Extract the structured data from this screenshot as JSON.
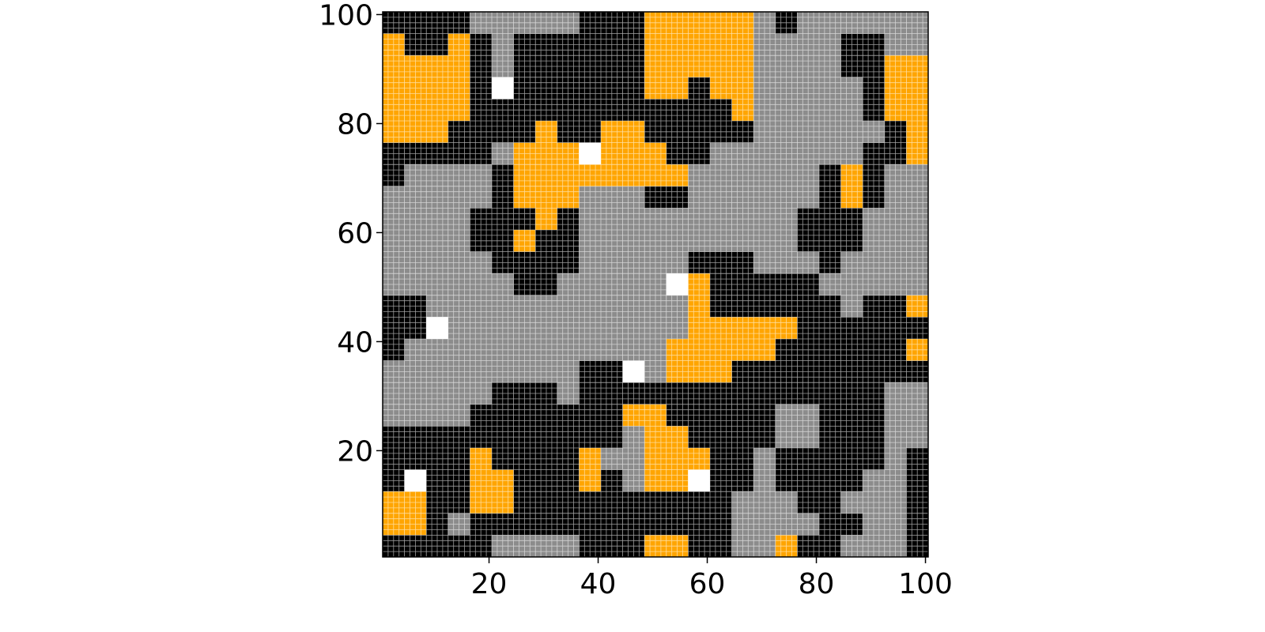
{
  "chart_data": {
    "type": "heatmap",
    "x": [
      2.5,
      6.5,
      10.5,
      14.5,
      18.5,
      22.5,
      26.5,
      30.5,
      34.5,
      38.5,
      42.5,
      46.5,
      50.5,
      54.5,
      58.5,
      62.5,
      66.5,
      70.5,
      74.5,
      78.5,
      82.5,
      86.5,
      90.5,
      94.5,
      98.5
    ],
    "y": [
      98.5,
      94.5,
      90.5,
      86.5,
      82.5,
      78.5,
      74.5,
      70.5,
      66.5,
      62.5,
      58.5,
      54.5,
      50.5,
      46.5,
      42.5,
      38.5,
      34.5,
      30.5,
      26.5,
      22.5,
      18.5,
      14.5,
      10.5,
      6.5,
      2.5
    ],
    "colors": [
      "#000000",
      "#8c8c8c",
      "#ffa500",
      "#ffffff"
    ],
    "values": [
      [
        0,
        0,
        0,
        0,
        1,
        1,
        1,
        1,
        1,
        0,
        0,
        0,
        2,
        2,
        2,
        2,
        2,
        1,
        0,
        1,
        1,
        1,
        1,
        1,
        1
      ],
      [
        2,
        0,
        0,
        2,
        0,
        1,
        0,
        0,
        0,
        0,
        0,
        0,
        2,
        2,
        2,
        2,
        2,
        1,
        1,
        1,
        1,
        0,
        0,
        1,
        1
      ],
      [
        2,
        2,
        2,
        2,
        0,
        1,
        0,
        0,
        0,
        0,
        0,
        0,
        2,
        2,
        2,
        2,
        2,
        1,
        1,
        1,
        1,
        0,
        0,
        2,
        2
      ],
      [
        2,
        2,
        2,
        2,
        0,
        3,
        0,
        0,
        0,
        0,
        0,
        0,
        2,
        2,
        0,
        2,
        2,
        1,
        1,
        1,
        1,
        1,
        0,
        2,
        2
      ],
      [
        2,
        2,
        2,
        2,
        0,
        0,
        0,
        0,
        0,
        0,
        0,
        0,
        0,
        0,
        0,
        0,
        2,
        1,
        1,
        1,
        1,
        1,
        0,
        2,
        2
      ],
      [
        2,
        2,
        2,
        0,
        0,
        0,
        0,
        2,
        0,
        0,
        2,
        2,
        0,
        0,
        0,
        0,
        0,
        1,
        1,
        1,
        1,
        1,
        1,
        0,
        2
      ],
      [
        0,
        0,
        0,
        0,
        0,
        1,
        2,
        2,
        2,
        3,
        2,
        2,
        2,
        0,
        0,
        1,
        1,
        1,
        1,
        1,
        1,
        1,
        0,
        0,
        2
      ],
      [
        0,
        1,
        1,
        1,
        1,
        0,
        2,
        2,
        2,
        2,
        2,
        2,
        2,
        2,
        1,
        1,
        1,
        1,
        1,
        1,
        0,
        2,
        0,
        1,
        1
      ],
      [
        1,
        1,
        1,
        1,
        1,
        0,
        2,
        2,
        2,
        1,
        1,
        1,
        0,
        0,
        1,
        1,
        1,
        1,
        1,
        1,
        0,
        2,
        0,
        1,
        1
      ],
      [
        1,
        1,
        1,
        1,
        0,
        0,
        0,
        2,
        0,
        1,
        1,
        1,
        1,
        1,
        1,
        1,
        1,
        1,
        1,
        0,
        0,
        0,
        1,
        1,
        1
      ],
      [
        1,
        1,
        1,
        1,
        0,
        0,
        2,
        0,
        0,
        1,
        1,
        1,
        1,
        1,
        1,
        1,
        1,
        1,
        1,
        0,
        0,
        0,
        1,
        1,
        1
      ],
      [
        1,
        1,
        1,
        1,
        1,
        0,
        0,
        0,
        0,
        1,
        1,
        1,
        1,
        1,
        0,
        0,
        0,
        1,
        1,
        1,
        0,
        1,
        1,
        1,
        1
      ],
      [
        1,
        1,
        1,
        1,
        1,
        1,
        0,
        0,
        1,
        1,
        1,
        1,
        1,
        3,
        2,
        0,
        0,
        0,
        0,
        0,
        1,
        1,
        1,
        1,
        1
      ],
      [
        0,
        0,
        1,
        1,
        1,
        1,
        1,
        1,
        1,
        1,
        1,
        1,
        1,
        1,
        2,
        0,
        0,
        0,
        0,
        0,
        0,
        1,
        0,
        0,
        2
      ],
      [
        0,
        0,
        3,
        1,
        1,
        1,
        1,
        1,
        1,
        1,
        1,
        1,
        1,
        1,
        2,
        2,
        2,
        2,
        2,
        0,
        0,
        0,
        0,
        0,
        0
      ],
      [
        0,
        1,
        1,
        1,
        1,
        1,
        1,
        1,
        1,
        1,
        1,
        1,
        1,
        2,
        2,
        2,
        2,
        2,
        0,
        0,
        0,
        0,
        0,
        0,
        2
      ],
      [
        1,
        1,
        1,
        1,
        1,
        1,
        1,
        1,
        1,
        0,
        0,
        3,
        1,
        2,
        2,
        2,
        0,
        0,
        0,
        0,
        0,
        0,
        0,
        0,
        0
      ],
      [
        1,
        1,
        1,
        1,
        1,
        0,
        0,
        0,
        1,
        0,
        0,
        0,
        0,
        0,
        0,
        0,
        0,
        0,
        0,
        0,
        0,
        0,
        0,
        1,
        1
      ],
      [
        1,
        1,
        1,
        1,
        0,
        0,
        0,
        0,
        0,
        0,
        0,
        2,
        2,
        0,
        0,
        0,
        0,
        0,
        1,
        1,
        0,
        0,
        0,
        1,
        1
      ],
      [
        0,
        0,
        0,
        0,
        0,
        0,
        0,
        0,
        0,
        0,
        0,
        1,
        2,
        2,
        0,
        0,
        0,
        0,
        1,
        1,
        0,
        0,
        0,
        1,
        1
      ],
      [
        0,
        0,
        0,
        0,
        2,
        0,
        0,
        0,
        0,
        2,
        1,
        1,
        2,
        2,
        2,
        0,
        0,
        1,
        0,
        0,
        0,
        0,
        0,
        1,
        0
      ],
      [
        0,
        3,
        0,
        0,
        2,
        2,
        0,
        0,
        0,
        2,
        0,
        1,
        2,
        2,
        3,
        0,
        0,
        1,
        0,
        0,
        0,
        0,
        1,
        1,
        0
      ],
      [
        2,
        2,
        0,
        0,
        2,
        2,
        0,
        0,
        0,
        0,
        0,
        0,
        0,
        0,
        0,
        0,
        1,
        1,
        1,
        0,
        0,
        1,
        1,
        1,
        0
      ],
      [
        2,
        2,
        0,
        1,
        0,
        0,
        0,
        0,
        0,
        0,
        0,
        0,
        0,
        0,
        0,
        0,
        1,
        1,
        1,
        1,
        0,
        0,
        1,
        1,
        0
      ],
      [
        0,
        0,
        0,
        0,
        0,
        1,
        1,
        1,
        1,
        0,
        0,
        0,
        2,
        2,
        0,
        0,
        1,
        1,
        2,
        0,
        0,
        1,
        1,
        1,
        0
      ]
    ],
    "xlim": [
      0.5,
      100.5
    ],
    "ylim": [
      0.5,
      100.5
    ],
    "xticks": [
      20,
      40,
      60,
      80,
      100
    ],
    "yticks": [
      20,
      40,
      60,
      80,
      100
    ]
  }
}
